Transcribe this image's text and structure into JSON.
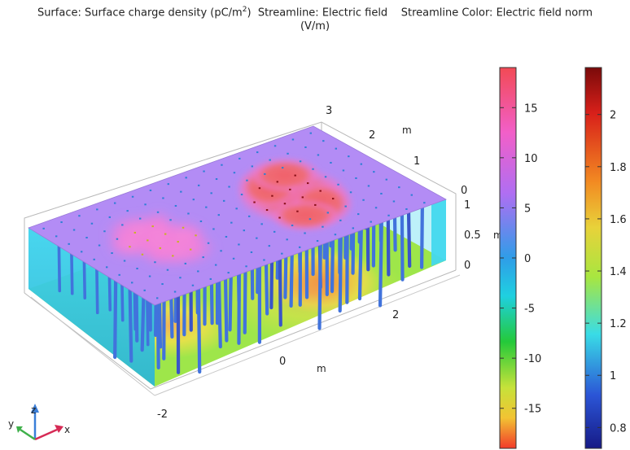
{
  "title": {
    "surface": "Surface: Surface charge density (pC/m",
    "surface_sup": "2",
    "surface_close": ")",
    "streamline": "Streamline: Electric field",
    "streamline_unit": "(V/m)",
    "color": "Streamline Color: Electric field norm"
  },
  "chart_data": {
    "type": "3d-surface-streamline",
    "axes": {
      "x": {
        "ticks": [
          "-2",
          "0",
          "2"
        ],
        "unit": "m"
      },
      "y": {
        "ticks": [
          "0",
          "1",
          "2",
          "3"
        ],
        "unit": "m"
      },
      "z": {
        "ticks": [
          "0",
          "0.5",
          "1"
        ],
        "unit": "m"
      }
    },
    "colorbars": [
      {
        "quantity": "surface",
        "min": -19,
        "max": 19,
        "ticks": [
          15,
          10,
          5,
          0,
          -5,
          -10,
          -15
        ],
        "colormap": "rainbow"
      },
      {
        "quantity": "streamline",
        "min": 0.72,
        "max": 2.18,
        "ticks": [
          2,
          1.8,
          1.6,
          1.4,
          1.2,
          1,
          0.8
        ],
        "colormap": "jet"
      }
    ],
    "triad": {
      "x": "x",
      "y": "y",
      "z": "z"
    }
  },
  "colors": {
    "top_base": "#b38cf5",
    "top_pink": "#f27fd9",
    "top_red": "#f26c74",
    "bottom_base": "#9ee64a",
    "bottom_yellow": "#e9de44",
    "bottom_orange": "#f08a3a",
    "side_cyan": "#43d8ee",
    "streamline": "#3c67d6",
    "axis_x": "#d62a55",
    "axis_y": "#3fb04a",
    "axis_z": "#3a7ed8"
  }
}
